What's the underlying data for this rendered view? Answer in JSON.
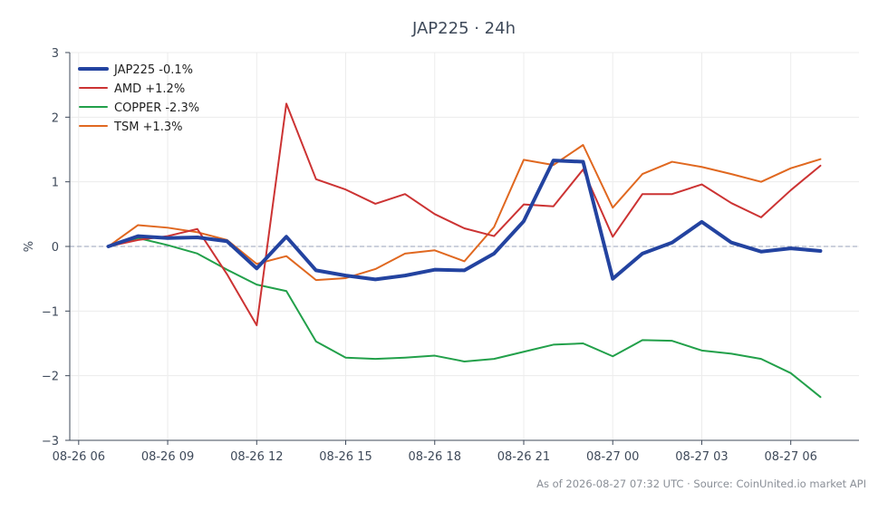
{
  "chart_data": {
    "type": "line",
    "title": "JAP225 · 24h",
    "xlabel": "",
    "ylabel": "%",
    "xlim": [
      -0.3,
      26.3
    ],
    "ylim": [
      -3,
      3
    ],
    "grid": true,
    "legend_position": "top-left",
    "zero_line": true,
    "x_ticks": [
      {
        "x": 0,
        "label": "08-26 06"
      },
      {
        "x": 3,
        "label": "08-26 09"
      },
      {
        "x": 6,
        "label": "08-26 12"
      },
      {
        "x": 9,
        "label": "08-26 15"
      },
      {
        "x": 12,
        "label": "08-26 18"
      },
      {
        "x": 15,
        "label": "08-26 21"
      },
      {
        "x": 18,
        "label": "08-27 00"
      },
      {
        "x": 21,
        "label": "08-27 03"
      },
      {
        "x": 24,
        "label": "08-27 06"
      }
    ],
    "y_ticks": [
      {
        "y": 3,
        "label": "3"
      },
      {
        "y": 2,
        "label": "2"
      },
      {
        "y": 1,
        "label": "1"
      },
      {
        "y": 0,
        "label": "0"
      },
      {
        "y": -1,
        "label": "−1"
      },
      {
        "y": -2,
        "label": "−2"
      },
      {
        "y": -3,
        "label": "−3"
      }
    ],
    "x": [
      1,
      2,
      3,
      4,
      5,
      6,
      7,
      8,
      9,
      10,
      11,
      12,
      13,
      14,
      15,
      16,
      17,
      18,
      19,
      20,
      21,
      22,
      23,
      24,
      25
    ],
    "series": [
      {
        "name": "JAP225 -0.1%",
        "color": "#2343a0",
        "bold": true,
        "values": [
          0.0,
          0.16,
          0.13,
          0.14,
          0.08,
          -0.34,
          0.15,
          -0.37,
          -0.45,
          -0.51,
          -0.45,
          -0.36,
          -0.37,
          -0.11,
          0.39,
          1.33,
          1.31,
          -0.5,
          -0.11,
          0.06,
          0.38,
          0.06,
          -0.08,
          -0.03,
          -0.07
        ]
      },
      {
        "name": "AMD +1.2%",
        "color": "#cc3333",
        "bold": false,
        "values": [
          0.0,
          0.1,
          0.16,
          0.27,
          -0.43,
          -1.22,
          2.21,
          1.04,
          0.88,
          0.66,
          0.81,
          0.5,
          0.28,
          0.16,
          0.65,
          0.62,
          1.19,
          0.15,
          0.81,
          0.81,
          0.96,
          0.67,
          0.45,
          0.87,
          1.25
        ]
      },
      {
        "name": "COPPER -2.3%",
        "color": "#22a04a",
        "bold": false,
        "values": [
          0.0,
          0.13,
          0.02,
          -0.11,
          -0.36,
          -0.59,
          -0.69,
          -1.47,
          -1.72,
          -1.74,
          -1.72,
          -1.69,
          -1.78,
          -1.74,
          -1.63,
          -1.52,
          -1.5,
          -1.7,
          -1.45,
          -1.46,
          -1.61,
          -1.66,
          -1.74,
          -1.96,
          -2.33
        ]
      },
      {
        "name": "TSM +1.3%",
        "color": "#e06820",
        "bold": false,
        "values": [
          0.0,
          0.33,
          0.29,
          0.22,
          0.1,
          -0.27,
          -0.15,
          -0.52,
          -0.49,
          -0.35,
          -0.11,
          -0.06,
          -0.23,
          0.3,
          1.34,
          1.26,
          1.57,
          0.6,
          1.12,
          1.31,
          1.23,
          1.12,
          1.0,
          1.21,
          1.35
        ]
      }
    ]
  },
  "footer": "As of 2026-08-27 07:32 UTC · Source: CoinUnited.io market API"
}
